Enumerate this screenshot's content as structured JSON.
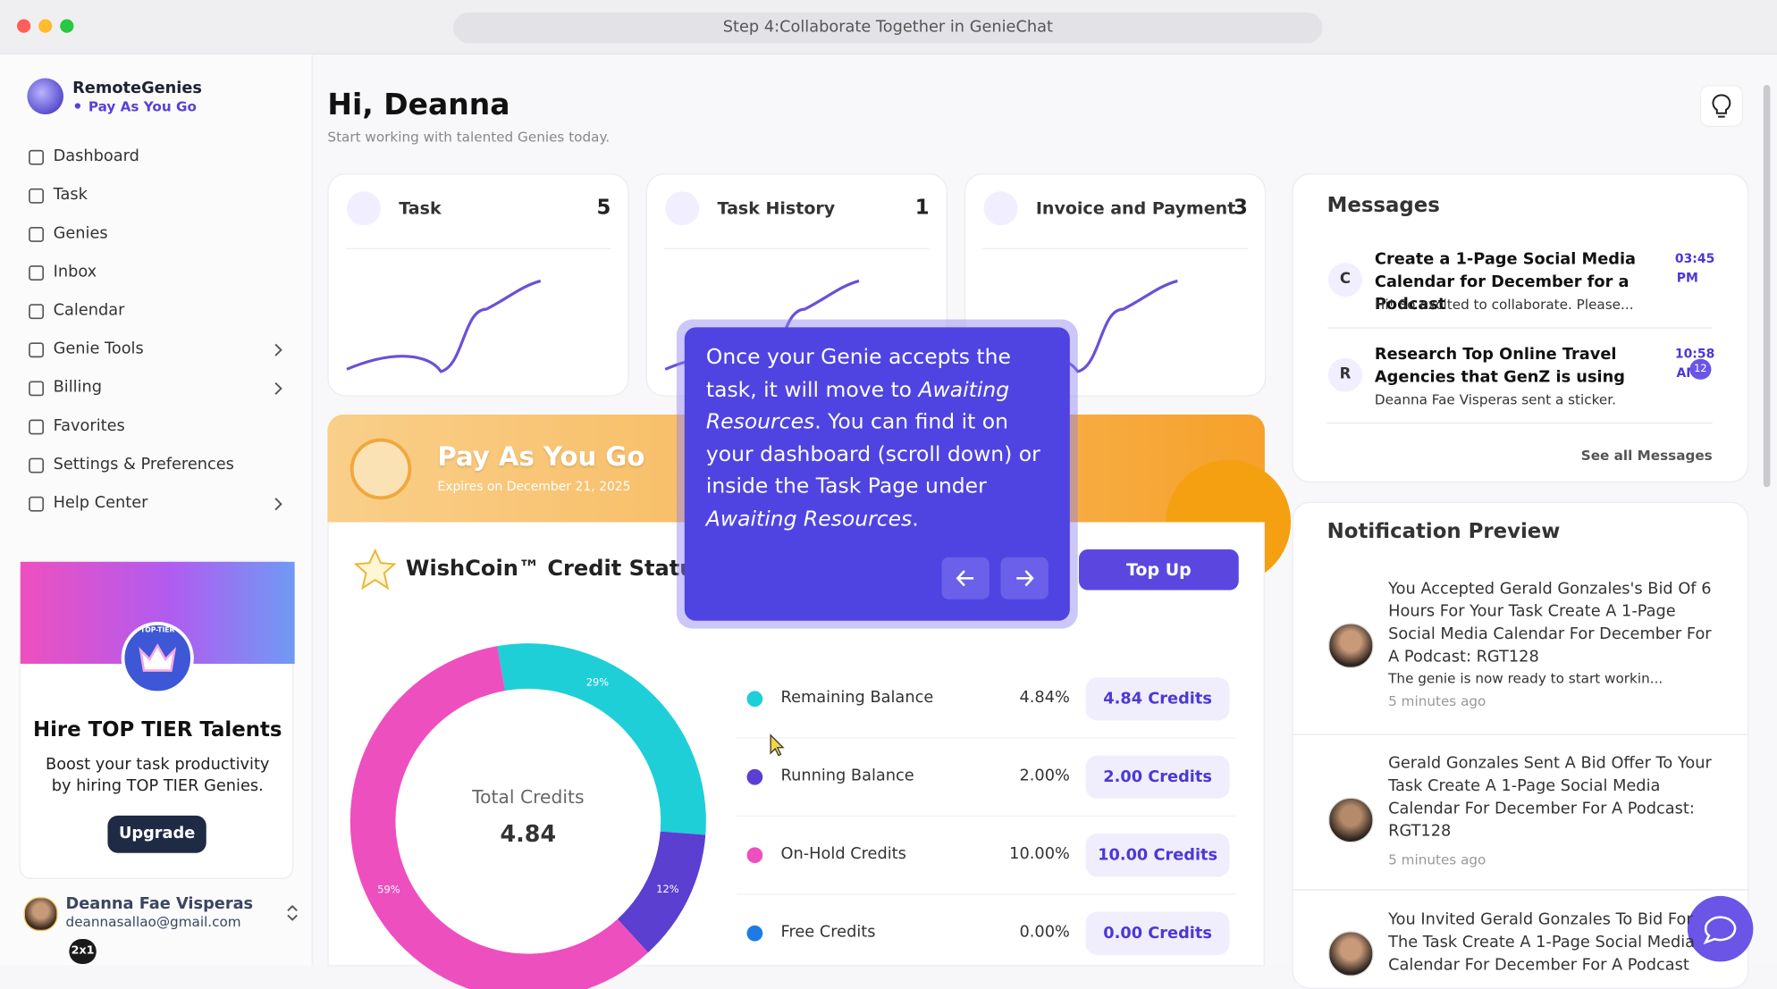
{
  "window_title": "Step 4:Collaborate Together in GenieChat",
  "sidebar": {
    "brand": "RemoteGenies",
    "plan": "Pay As You Go",
    "nav": [
      {
        "label": "Dashboard",
        "has_submenu": false
      },
      {
        "label": "Task",
        "has_submenu": false
      },
      {
        "label": "Genies",
        "has_submenu": false
      },
      {
        "label": "Inbox",
        "has_submenu": false
      },
      {
        "label": "Calendar",
        "has_submenu": false
      },
      {
        "label": "Genie Tools",
        "has_submenu": true
      },
      {
        "label": "Billing",
        "has_submenu": true
      },
      {
        "label": "Favorites",
        "has_submenu": false
      },
      {
        "label": "Settings & Preferences",
        "has_submenu": false
      },
      {
        "label": "Help Center",
        "has_submenu": true
      }
    ],
    "promo": {
      "badge": "TOP-TIER",
      "title": "Hire TOP TIER Talents",
      "text": "Boost your task productivity by hiring TOP TIER Genies.",
      "button": "Upgrade"
    },
    "user": {
      "name": "Deanna Fae Visperas",
      "email": "deannasallao@gmail.com",
      "badge": "2x1"
    }
  },
  "header": {
    "greeting": "Hi, Deanna",
    "subtitle": "Start working with talented Genies today."
  },
  "stats": [
    {
      "label": "Task",
      "count": 5
    },
    {
      "label": "Task History",
      "count": 1
    },
    {
      "label": "Invoice and Payment",
      "count": 3
    }
  ],
  "plan_banner": {
    "title": "Pay As You Go",
    "expires": "Expires on December 21, 2025"
  },
  "credits": {
    "title": "WishCoin™ Credit Status",
    "button": "Top Up",
    "total_label": "Total Credits",
    "total": 4.84,
    "donut": [
      {
        "value": 29,
        "label": "29%",
        "color": "#1ecfd8"
      },
      {
        "value": 12,
        "label": "12%",
        "color": "#5b3fd0"
      },
      {
        "value": 59,
        "label": "59%",
        "color": "#ee4fbf"
      }
    ],
    "rows": [
      {
        "name": "Remaining Balance",
        "percent": "4.84%",
        "credits": "4.84 Credits",
        "color": "#1ecfd8"
      },
      {
        "name": "Running Balance",
        "percent": "2.00%",
        "credits": "2.00 Credits",
        "color": "#5b3fd0"
      },
      {
        "name": "On-Hold Credits",
        "percent": "10.00%",
        "credits": "10.00 Credits",
        "color": "#ee4fbf"
      },
      {
        "name": "Free Credits",
        "percent": "0.00%",
        "credits": "0.00 Credits",
        "color": "#1e7be6"
      }
    ]
  },
  "messages": {
    "title": "Messages",
    "items": [
      {
        "initial": "C",
        "title": "Create a 1-Page Social Media Calendar for December for a Podcast",
        "time": "03:45",
        "meridiem": "PM",
        "preview": "Hi! So excited to collaborate. Please..."
      },
      {
        "initial": "R",
        "title": "Research Top Online Travel Agencies that GenZ is using",
        "time": "10:58",
        "meridiem": "AM",
        "unread": 12,
        "preview": "Deanna Fae Visperas sent a sticker."
      }
    ],
    "see_all": "See all Messages"
  },
  "notifications": {
    "title": "Notification Preview",
    "items": [
      {
        "text": "You Accepted Gerald Gonzales's Bid Of 6 Hours For Your Task Create A 1-Page Social Media Calendar For December For A Podcast: RGT128",
        "sub": "The genie is now ready to start workin...",
        "time": "5 minutes ago"
      },
      {
        "text": "Gerald Gonzales Sent A Bid Offer To Your Task Create A 1-Page Social Media Calendar For December For A Podcast: RGT128",
        "time": "5 minutes ago"
      },
      {
        "text": "You Invited Gerald Gonzales To Bid For The Task Create A 1-Page Social Media Calendar For December For A Podcast"
      }
    ]
  },
  "tooltip": {
    "parts": [
      {
        "text": "Once your Genie accepts the task, it will move to ",
        "italic": false
      },
      {
        "text": "Awaiting Resources",
        "italic": true
      },
      {
        "text": ". You can find it on your dashboard (scroll down) or inside the Task Page under ",
        "italic": false
      },
      {
        "text": "Awaiting Resources",
        "italic": true
      },
      {
        "text": ".",
        "italic": false
      }
    ]
  }
}
